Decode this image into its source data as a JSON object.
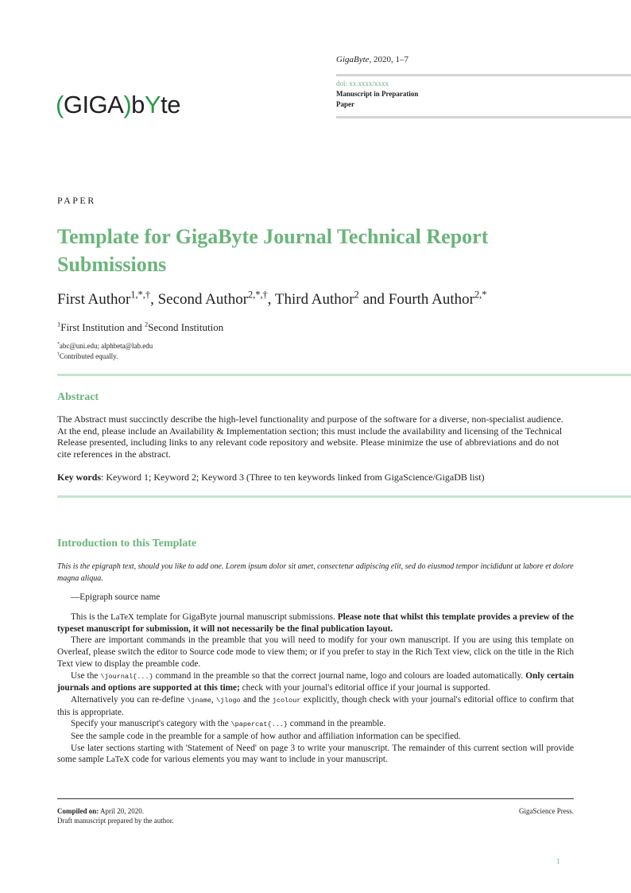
{
  "header": {
    "journal": "GigaByte",
    "citation": ", 2020, 1–7",
    "doi": "doi: xx.xxxx/xxxx",
    "status": "Manuscript in Preparation",
    "category": "Paper",
    "logo_text": "(GIGA)byte"
  },
  "colors": {
    "accent": "#6ab47a",
    "rule_green": "#c6e4cb",
    "rule_gray": "#d4d4d4"
  },
  "paper_label": "PAPER",
  "title": "Template for GigaByte Journal Technical Report Submissions",
  "authors": [
    {
      "name": "First Author",
      "marks": "1,*,†",
      "sep": ", "
    },
    {
      "name": "Second Author",
      "marks": "2,*,†",
      "sep": ", "
    },
    {
      "name": "Third Author",
      "marks": "2",
      "sep": " and "
    },
    {
      "name": "Fourth Author",
      "marks": "2,*",
      "sep": ""
    }
  ],
  "affiliations": {
    "m1": "1",
    "a1": "First Institution and ",
    "m2": "2",
    "a2": "Second Institution"
  },
  "notes": {
    "email_mark": "*",
    "emails": "abc@uni.edu; alphbeta@lab.edu",
    "equal_mark": "†",
    "equal": "Contributed equally."
  },
  "abstract": {
    "heading": "Abstract",
    "text": "The Abstract must succinctly describe the high-level functionality and purpose of the software for a diverse, non-specialist audience. At the end, please include an Availability & Implementation section; this must include the availability and licensing of the Technical Release presented, including links to any relevant code repository and website. Please minimize the use of abbreviations and do not cite references in the abstract.",
    "keywords_label": "Key words",
    "keywords": ": Keyword 1; Keyword 2; Keyword 3 (Three to ten keywords linked from GigaScience/GigaDB list)"
  },
  "intro": {
    "heading": "Introduction to this Template",
    "epigraph": "This is the epigraph text, should you like to add one. Lorem ipsum dolor sit amet, consectetur adipiscing elit, sed do eiusmod tempor incididunt ut labore et dolore magna aliqua.",
    "epigraph_source": "—Epigraph source name",
    "p1a": "This is the ",
    "latex": "LaTeX",
    "p1b": " template for GigaByte journal manuscript submissions. ",
    "p1bold": "Please note that whilst this template provides a preview of the typeset manuscript for submission, it will not necessarily be the final publication layout.",
    "p2": "There are important commands in the preamble that you will need to modify for your own manuscript. If you are using this template on Overleaf, please switch the editor to Source code mode to view them; or if you prefer to stay in the Rich Text view, click on the title in the Rich Text view to display the preamble code.",
    "p3a": "Use the ",
    "p3code": "\\journal{...}",
    "p3b": " command in the preamble so that the correct journal name, logo and colours are loaded automatically. ",
    "p3bold": "Only certain journals and options are supported at this time;",
    "p3c": " check with your journal's editorial office if your journal is supported.",
    "p4a": "Alternatively you can re-define ",
    "p4code1": "\\jname",
    "p4sep": ", ",
    "p4code2": "\\jlogo",
    "p4b": " and the ",
    "p4code3": "jcolour",
    "p4c": " explicitly, though check with your journal's editorial office to confirm that this is appropriate.",
    "p5a": "Specify your manuscript's category with the ",
    "p5code": "\\papercat{...}",
    "p5b": " command in the preamble.",
    "p6": "See the sample code in the preamble for a sample of how author and affiliation information can be specified.",
    "p7a": "Use later sections starting with 'Statement of Need' on page 3 to write your manuscript. The remainder of this current section will provide some sample ",
    "p7b": " code for various elements you may want to include in your manuscript."
  },
  "footer": {
    "compiled_label": "Compiled on:",
    "compiled_date": " April 20, 2020.",
    "draft": "Draft manuscript prepared by the author.",
    "publisher": "GigaScience Press.",
    "page": "1"
  }
}
